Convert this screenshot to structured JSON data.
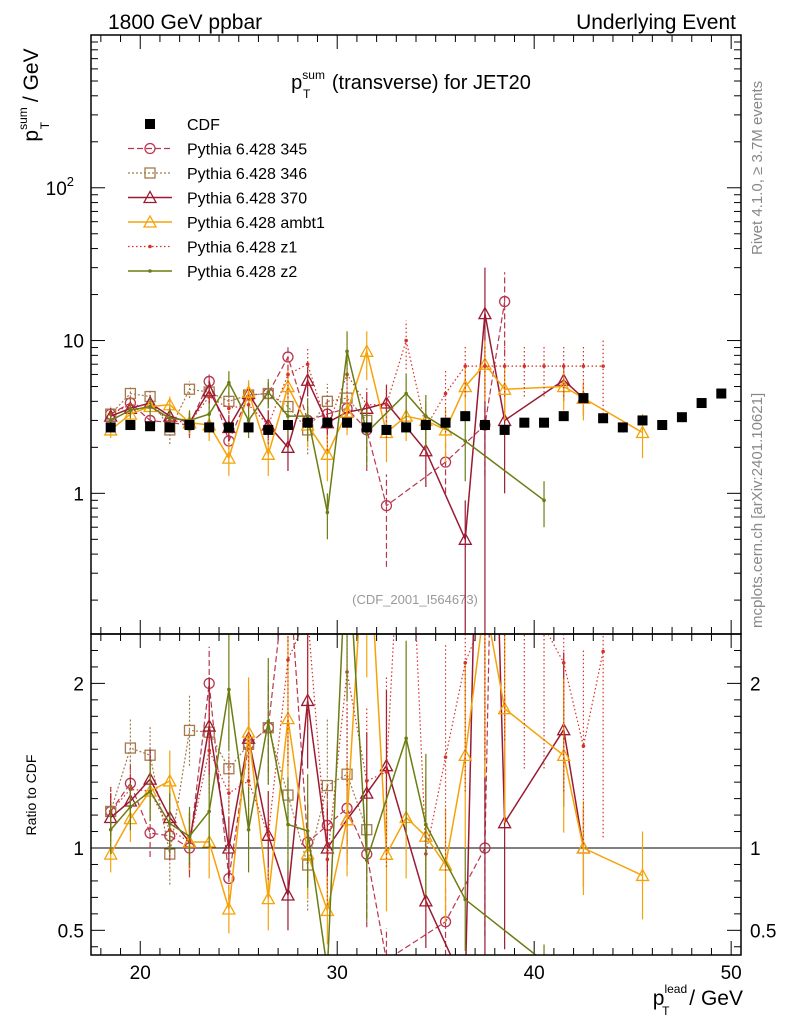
{
  "header": {
    "left": "1800 GeV ppbar",
    "right": "Underlying Event"
  },
  "side": {
    "rivet": "Rivet 4.1.0, ≥ 3.7M events",
    "mcplots": "mcplots.cern.ch [arXiv:2401.10621]"
  },
  "chart_data": {
    "type": "scatter",
    "title_main": "p",
    "title_sup": "sum",
    "title_sub": "T",
    "title_rest": " (transverse) for JET20",
    "watermark": "(CDF_2001_I564673)",
    "ylabel_main": "p",
    "ylabel_sup": "sum",
    "ylabel_sub": "T",
    "ylabel_rest": " / GeV",
    "xlabel_main": "p",
    "xlabel_sup": "lead",
    "xlabel_sub": "T",
    "xlabel_rest": " / GeV",
    "ratio_ylabel": "Ratio to CDF",
    "xlim": [
      17.5,
      50.5
    ],
    "ylim_main": [
      0.12,
      1000
    ],
    "ylog": true,
    "ylim_ratio": [
      0.35,
      2.3
    ],
    "xticks": [
      {
        "v": 20,
        "label": "20"
      },
      {
        "v": 30,
        "label": "30"
      },
      {
        "v": 40,
        "label": "40"
      },
      {
        "v": 50,
        "label": "50"
      }
    ],
    "yticks_main": [
      {
        "v": 1,
        "label": "1"
      },
      {
        "v": 10,
        "label": "10"
      },
      {
        "v": 100,
        "label": "10",
        "sup": "2"
      }
    ],
    "yticks_ratio": [
      {
        "v": 0.5,
        "label": "0.5"
      },
      {
        "v": 1,
        "label": "1"
      },
      {
        "v": 2,
        "label": "2"
      }
    ],
    "x": [
      18.5,
      19.5,
      20.5,
      21.5,
      22.5,
      23.5,
      24.5,
      25.5,
      26.5,
      27.5,
      28.5,
      29.5,
      30.5,
      31.5,
      32.5,
      33.5,
      34.5,
      35.5,
      36.5,
      37.5,
      38.5,
      39.5,
      40.5,
      41.5,
      42.5,
      43.5,
      44.5,
      45.5,
      46.5,
      47.5,
      48.5,
      49.5
    ],
    "cdf": [
      2.7,
      2.8,
      2.75,
      2.7,
      2.8,
      2.7,
      2.7,
      2.7,
      2.6,
      2.8,
      2.9,
      2.9,
      2.9,
      2.7,
      2.6,
      2.7,
      2.8,
      2.9,
      3.2,
      2.8,
      2.6,
      2.9,
      2.9,
      3.2,
      4.2,
      3.1,
      2.7,
      3.0,
      2.8,
      3.15,
      3.9,
      4.5
    ],
    "cdf_err": [
      0.15,
      0.15,
      0.15,
      0.15,
      0.15,
      0.15,
      0.15,
      0.15,
      0.15,
      0.15,
      0.15,
      0.15,
      0.15,
      0.15,
      0.15,
      0.15,
      0.15,
      0.15,
      0.15,
      0.15,
      0.15,
      0.15,
      0.15,
      0.15,
      0.2,
      0.2,
      0.2,
      0.2,
      0.2,
      0.2,
      0.2,
      0.2
    ],
    "series": [
      {
        "name": "Pythia 6.428 345",
        "color": "#b8364f",
        "dash": "6,3",
        "marker": "circle",
        "lw": 1.2,
        "x": [
          18.5,
          19.5,
          20.5,
          21.5,
          22.5,
          23.5,
          24.5,
          25.5,
          26.5,
          27.5,
          28.5,
          29.5,
          30.5,
          31.5,
          32.5,
          35.5,
          37.5,
          38.5
        ],
        "y": [
          3.3,
          3.9,
          3.0,
          2.9,
          2.8,
          5.4,
          2.2,
          4.4,
          4.5,
          7.8,
          3.0,
          3.3,
          3.6,
          2.6,
          0.83,
          1.6,
          2.8,
          18
        ],
        "e": [
          0.4,
          0.4,
          0.4,
          0.4,
          0.5,
          0.6,
          0.5,
          0.6,
          0.7,
          1.5,
          0.7,
          0.8,
          0.8,
          1.2,
          0.5,
          0.6,
          1.5,
          10
        ]
      },
      {
        "name": "Pythia 6.428 346",
        "color": "#a37a4c",
        "dash": "2,2",
        "marker": "square",
        "lw": 1.2,
        "x": [
          18.5,
          19.5,
          20.5,
          21.5,
          22.5,
          23.5,
          24.5,
          25.5,
          26.5,
          27.5,
          28.5,
          29.5,
          30.5,
          31.5
        ],
        "y": [
          3.3,
          4.5,
          4.3,
          2.6,
          4.8,
          4.6,
          4.0,
          4.4,
          4.5,
          3.7,
          2.6,
          4.0,
          4.2,
          3.0
        ],
        "e": [
          0.4,
          0.5,
          0.5,
          0.5,
          0.6,
          0.7,
          0.7,
          0.8,
          0.9,
          1.0,
          0.8,
          1.2,
          1.2,
          1.0
        ]
      },
      {
        "name": "Pythia 6.428 370",
        "color": "#9a1a32",
        "dash": "",
        "marker": "triangle",
        "lw": 1.5,
        "x": [
          18.5,
          19.5,
          20.5,
          21.5,
          22.5,
          23.5,
          24.5,
          25.5,
          26.5,
          27.5,
          28.5,
          29.5,
          30.5,
          31.5,
          32.5,
          34.5,
          36.5,
          37.5,
          38.5,
          41.5,
          42.5
        ],
        "y": [
          3.2,
          3.6,
          3.9,
          3.2,
          2.9,
          4.7,
          2.7,
          4.5,
          2.8,
          2.0,
          5.5,
          2.9,
          3.4,
          3.6,
          3.9,
          1.9,
          0.5,
          15,
          3.0,
          5.5,
          4.2
        ],
        "e": [
          0.4,
          0.4,
          0.5,
          0.5,
          0.5,
          0.8,
          0.5,
          0.8,
          0.7,
          0.6,
          1.2,
          0.7,
          0.8,
          1.0,
          1.2,
          0.8,
          0.4,
          15,
          2.0,
          1.5,
          1.0
        ]
      },
      {
        "name": "Pythia 6.428 ambt1",
        "color": "#f5a30a",
        "dash": "",
        "marker": "triangle",
        "lw": 1.5,
        "x": [
          18.5,
          19.5,
          20.5,
          21.5,
          22.5,
          23.5,
          24.5,
          25.5,
          26.5,
          27.5,
          28.5,
          29.5,
          30.5,
          31.5,
          32.5,
          33.5,
          34.5,
          35.5,
          36.5,
          37.5,
          38.5,
          41.5,
          42.5,
          45.5
        ],
        "y": [
          2.6,
          3.3,
          3.7,
          3.8,
          2.9,
          2.8,
          1.7,
          4.6,
          1.8,
          5.0,
          2.8,
          1.8,
          3.4,
          8.5,
          2.5,
          3.2,
          3.0,
          2.6,
          5.0,
          7.0,
          4.8,
          5.0,
          4.2,
          2.5
        ],
        "e": [
          0.3,
          0.4,
          0.5,
          0.5,
          0.5,
          0.6,
          0.4,
          0.9,
          0.5,
          1.4,
          0.8,
          0.6,
          1.0,
          3.0,
          0.9,
          1.0,
          1.0,
          1.0,
          1.8,
          3.0,
          1.8,
          1.5,
          1.2,
          0.8
        ]
      },
      {
        "name": "Pythia 6.428 z1",
        "color": "#d73027",
        "dash": "1.5,2.5",
        "marker": "dot",
        "lw": 1.2,
        "x": [
          18.5,
          19.5,
          20.5,
          21.5,
          22.5,
          23.5,
          24.5,
          25.5,
          26.5,
          27.5,
          28.5,
          29.5,
          30.5,
          31.5,
          32.5,
          33.5,
          34.5,
          35.5,
          36.5,
          37.5,
          38.5,
          39.5,
          40.5,
          41.5,
          42.5,
          43.5
        ],
        "y": [
          3.3,
          3.8,
          3.7,
          3.0,
          2.9,
          4.3,
          3.6,
          3.8,
          2.8,
          6.0,
          7.0,
          2.7,
          6.0,
          3.8,
          3.8,
          10,
          2.7,
          4.5,
          6.8,
          6.8,
          6.8,
          6.8,
          6.8,
          6.8,
          6.8,
          6.8
        ],
        "e": [
          0.4,
          0.4,
          0.5,
          0.5,
          0.5,
          0.7,
          0.6,
          0.8,
          0.7,
          1.8,
          2.0,
          0.8,
          2.0,
          1.2,
          1.5,
          3.5,
          1.2,
          2.0,
          2.5,
          2.5,
          2.5,
          2.5,
          2.5,
          2.5,
          2.5,
          3.5
        ]
      },
      {
        "name": "Pythia 6.428 z2",
        "color": "#6b7d12",
        "dash": "",
        "marker": "dot",
        "lw": 1.5,
        "x": [
          18.5,
          19.5,
          20.5,
          21.5,
          22.5,
          23.5,
          24.5,
          25.5,
          26.5,
          27.5,
          28.5,
          29.5,
          30.5,
          31.5,
          33.5,
          34.5,
          36.5,
          40.5
        ],
        "y": [
          3.0,
          3.5,
          3.7,
          3.1,
          3.0,
          3.3,
          5.3,
          3.0,
          4.6,
          3.2,
          3.2,
          0.75,
          8.5,
          2.5,
          4.5,
          3.2,
          2.2,
          0.9
        ],
        "e": [
          0.4,
          0.4,
          0.5,
          0.5,
          0.5,
          0.6,
          1.0,
          0.7,
          1.0,
          0.8,
          1.0,
          0.25,
          3.0,
          1.0,
          1.6,
          1.2,
          1.0,
          0.3
        ]
      }
    ]
  }
}
